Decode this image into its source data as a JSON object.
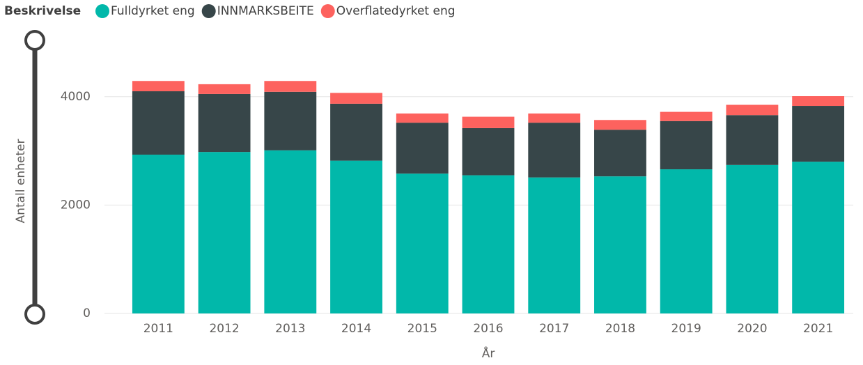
{
  "chart_data": {
    "type": "stacked_bar",
    "legend_title": "Beskrivelse",
    "x_label": "År",
    "y_label": "Antall enheter",
    "categories": [
      "2011",
      "2012",
      "2013",
      "2014",
      "2015",
      "2016",
      "2017",
      "2018",
      "2019",
      "2020",
      "2021"
    ],
    "series": [
      {
        "name": "Fulldyrket eng",
        "color": "#01b8aa",
        "values": [
          2930,
          2980,
          3010,
          2820,
          2580,
          2550,
          2510,
          2530,
          2660,
          2740,
          2800
        ]
      },
      {
        "name": "INNMARKSBEITE",
        "color": "#374649",
        "values": [
          1170,
          1070,
          1080,
          1050,
          940,
          870,
          1010,
          860,
          890,
          920,
          1030
        ]
      },
      {
        "name": "Overflatedyrket eng",
        "color": "#fd625e",
        "values": [
          190,
          180,
          200,
          200,
          170,
          210,
          170,
          180,
          170,
          190,
          180
        ]
      }
    ],
    "ylim": [
      0,
      5000
    ],
    "yticks": [
      0,
      2000,
      4000
    ],
    "grid": true,
    "legend": "top-left"
  }
}
